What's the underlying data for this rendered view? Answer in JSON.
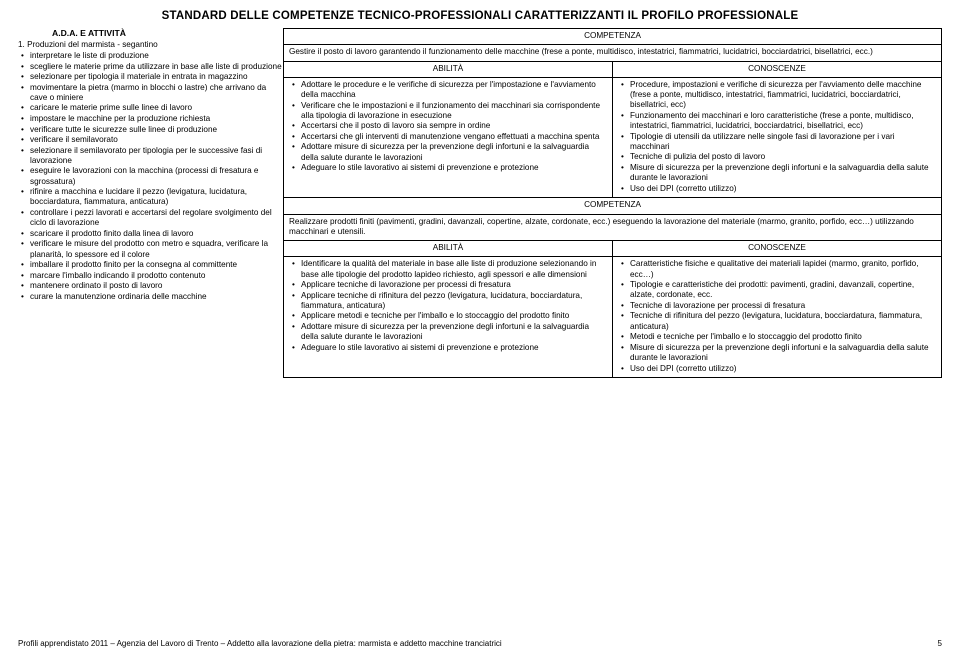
{
  "title": "STANDARD DELLE COMPETENZE TECNICO-PROFESSIONALI CARATTERIZZANTI IL PROFILO PROFESSIONALE",
  "left": {
    "ada": "A.D.A. E ATTIVITÀ",
    "head": "1.  Produzioni del marmista - segantino",
    "items": [
      "interpretare le liste di produzione",
      "scegliere le materie prime da utilizzare in base alle liste di produzione",
      "selezionare per tipologia il materiale in entrata in magazzino",
      "movimentare la pietra (marmo in blocchi o lastre) che arrivano da cave o miniere",
      "caricare le materie prime sulle linee di lavoro",
      "impostare le macchine per la produzione richiesta",
      "verificare tutte le sicurezze sulle linee di produzione",
      "verificare il semilavorato",
      "selezionare il semilavorato per tipologia per le successive fasi di lavorazione",
      "eseguire le lavorazioni con la macchina (processi di fresatura e sgrossatura)",
      "rifinire a macchina e lucidare il pezzo (levigatura, lucidatura, bocciardatura, fiammatura, anticatura)",
      "controllare i pezzi lavorati e accertarsi del regolare svolgimento del ciclo di lavorazione",
      "scaricare il prodotto finito dalla linea di lavoro",
      "verificare le misure del prodotto con metro e squadra, verificare la planarità, lo spessore ed il colore",
      "imballare il prodotto finito per la consegna al committente",
      "marcare l'imballo indicando il prodotto contenuto",
      "mantenere ordinato il posto di lavoro",
      "curare la manutenzione ordinaria delle macchine"
    ]
  },
  "labels": {
    "comp": "COMPETENZA",
    "abil": "ABILITÀ",
    "cono": "CONOSCENZE"
  },
  "comp1": {
    "text": "Gestire il posto di lavoro garantendo il funzionamento delle macchine (frese a ponte, multidisco, intestatrici, fiammatrici, lucidatrici, bocciardatrici, bisellatrici, ecc.)",
    "abil": [
      "Adottare le procedure e le verifiche di sicurezza per l'impostazione e l'avviamento della macchina",
      "Verificare che le impostazioni e il funzionamento dei macchinari sia corrispondente alla tipologia di lavorazione in esecuzione",
      "Accertarsi che il posto di lavoro sia sempre in ordine",
      "Accertarsi che gli interventi di manutenzione vengano effettuati a macchina spenta",
      "Adottare misure di sicurezza per la prevenzione degli infortuni e la salvaguardia della salute durante le lavorazioni",
      "Adeguare lo stile lavorativo ai sistemi di prevenzione e protezione"
    ],
    "cono": [
      "Procedure, impostazioni e verifiche di sicurezza per l'avviamento delle macchine (frese a ponte, multidisco, intestatrici, fiammatrici, lucidatrici, bocciardatrici, bisellatrici, ecc)",
      "Funzionamento dei macchinari e loro caratteristiche (frese a ponte, multidisco, intestatrici, fiammatrici, lucidatrici, bocciardatrici, bisellatrici, ecc)",
      "Tipologie di utensili da utilizzare nelle singole fasi di lavorazione per i vari macchinari",
      "Tecniche di pulizia del posto di lavoro",
      "Misure di sicurezza per la prevenzione degli infortuni e la salvaguardia della salute durante le lavorazioni",
      "Uso dei DPI (corretto utilizzo)"
    ]
  },
  "comp2": {
    "text": "Realizzare prodotti finiti (pavimenti, gradini, davanzali, copertine, alzate, cordonate, ecc.) eseguendo la lavorazione del materiale (marmo, granito, porfido, ecc…) utilizzando macchinari e utensili.",
    "abil": [
      "Identificare la qualità del materiale in base alle liste di produzione selezionando in base alle tipologie del prodotto lapideo richiesto, agli spessori e alle dimensioni",
      "Applicare tecniche di lavorazione per processi di fresatura",
      "Applicare tecniche di rifinitura del pezzo (levigatura, lucidatura, bocciardatura, fiammatura, anticatura)",
      "Applicare metodi e tecniche per l'imballo e lo stoccaggio del prodotto finito",
      "Adottare misure di sicurezza per la prevenzione degli infortuni e la salvaguardia della salute durante le lavorazioni",
      "Adeguare lo stile lavorativo ai sistemi di prevenzione e protezione"
    ],
    "cono": [
      "Caratteristiche fisiche e qualitative dei materiali lapidei (marmo, granito, porfido, ecc…)",
      "Tipologie e caratteristiche dei prodotti: pavimenti, gradini, davanzali, copertine, alzate, cordonate, ecc.",
      "Tecniche di lavorazione per processi di fresatura",
      "Tecniche di rifinitura del pezzo (levigatura, lucidatura, bocciardatura, fiammatura, anticatura)",
      "Metodi e tecniche per l'imballo e lo stoccaggio del prodotto finito",
      "Misure di sicurezza per la prevenzione degli infortuni e la salvaguardia della salute durante le lavorazioni",
      "Uso dei DPI (corretto utilizzo)"
    ]
  },
  "footer": "Profili apprendistato 2011 – Agenzia del Lavoro di Trento – Addetto alla lavorazione della pietra: marmista e addetto macchine tranciatrici",
  "page": "5"
}
